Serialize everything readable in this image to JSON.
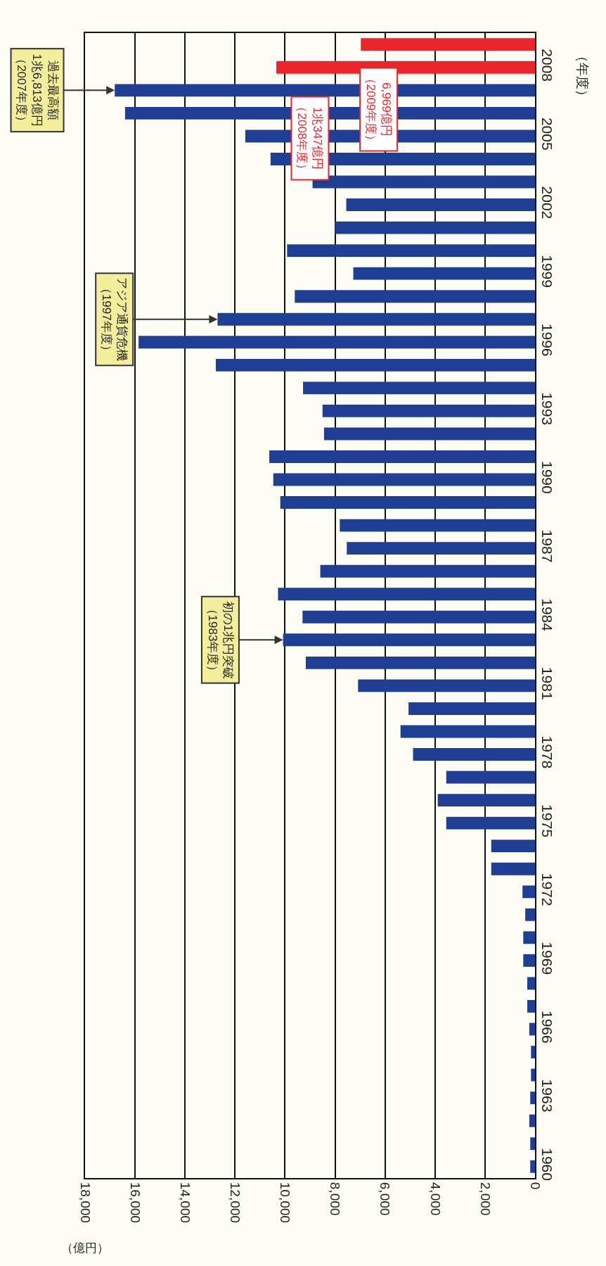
{
  "chart_data": {
    "type": "bar",
    "orientation": "horizontal",
    "xlabel": "（億円）",
    "ylabel": "（年度）",
    "categories": [
      null,
      "2008",
      null,
      null,
      "2005",
      null,
      null,
      "2002",
      null,
      null,
      "1999",
      null,
      null,
      "1996",
      null,
      null,
      "1993",
      null,
      null,
      "1990",
      null,
      null,
      "1987",
      null,
      null,
      "1984",
      null,
      null,
      "1981",
      null,
      null,
      "1978",
      null,
      null,
      "1975",
      null,
      null,
      "1972",
      null,
      null,
      "1969",
      null,
      null,
      "1966",
      null,
      null,
      "1963",
      null,
      null,
      "1960"
    ],
    "values": [
      6969,
      10347,
      16813,
      16400,
      11590,
      10580,
      8900,
      7550,
      8000,
      9920,
      7270,
      9610,
      12700,
      15860,
      12770,
      9280,
      8500,
      8440,
      10630,
      10470,
      10190,
      7810,
      7530,
      8590,
      10280,
      9300,
      10080,
      9170,
      7080,
      5060,
      5380,
      4880,
      3550,
      3890,
      3550,
      1750,
      1750,
      500,
      390,
      470,
      470,
      310,
      310,
      230,
      160,
      160,
      190,
      230,
      190,
      190
    ],
    "colors": [
      "#e8262b",
      "#e8262b",
      "#1f3f94",
      "#1f3f94",
      "#1f3f94",
      "#1f3f94",
      "#1f3f94",
      "#1f3f94",
      "#1f3f94",
      "#1f3f94",
      "#1f3f94",
      "#1f3f94",
      "#1f3f94",
      "#1f3f94",
      "#1f3f94",
      "#1f3f94",
      "#1f3f94",
      "#1f3f94",
      "#1f3f94",
      "#1f3f94",
      "#1f3f94",
      "#1f3f94",
      "#1f3f94",
      "#1f3f94",
      "#1f3f94",
      "#1f3f94",
      "#1f3f94",
      "#1f3f94",
      "#1f3f94",
      "#1f3f94",
      "#1f3f94",
      "#1f3f94",
      "#1f3f94",
      "#1f3f94",
      "#1f3f94",
      "#1f3f94",
      "#1f3f94",
      "#1f3f94",
      "#1f3f94",
      "#1f3f94",
      "#1f3f94",
      "#1f3f94",
      "#1f3f94",
      "#1f3f94",
      "#1f3f94",
      "#1f3f94",
      "#1f3f94",
      "#1f3f94",
      "#1f3f94",
      "#1f3f94"
    ],
    "xlim": [
      18000,
      0
    ],
    "xticks": [
      {
        "value": 18000,
        "label": "18,000"
      },
      {
        "value": 16000,
        "label": "16,000"
      },
      {
        "value": 14000,
        "label": "14,000"
      },
      {
        "value": 12000,
        "label": "12,000"
      },
      {
        "value": 10000,
        "label": "10,000"
      },
      {
        "value": 8000,
        "label": "8,000"
      },
      {
        "value": 6000,
        "label": "6,000"
      },
      {
        "value": 4000,
        "label": "4,000"
      },
      {
        "value": 2000,
        "label": "2,000"
      },
      0
    ],
    "grid": "x",
    "legend": false,
    "annotations": [
      {
        "text": "過去最高額1兆6,813億円（2007年度）",
        "x": 16813
      },
      {
        "text": "アジア通貨危機（1997年度）",
        "x": 12700
      },
      {
        "text": "初の1兆円突破（1983年度）",
        "x": 10080
      },
      "1兆347億円（2008年度）",
      "6,969億円（2009年度）"
    ]
  }
}
